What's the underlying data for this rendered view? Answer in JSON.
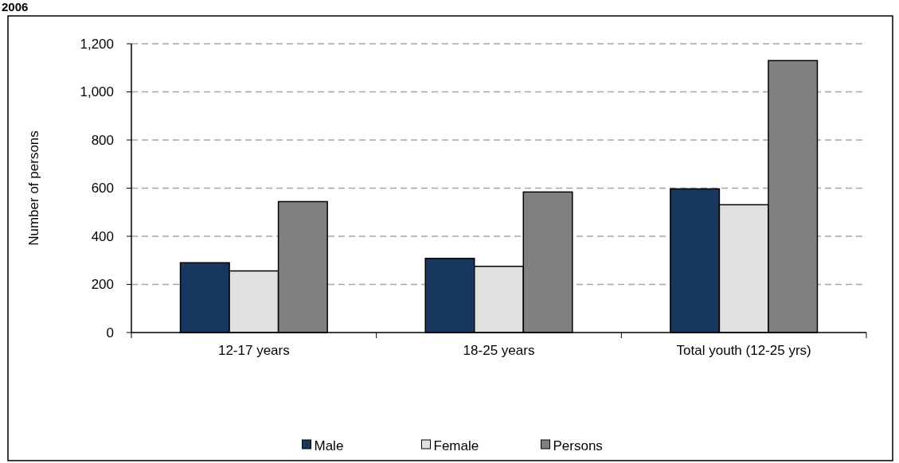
{
  "chart_data": {
    "type": "bar",
    "title": "2006",
    "ylabel": "Number of persons",
    "categories": [
      "12-17 years",
      "18-25 years",
      "Total youth (12-25 yrs)"
    ],
    "series": [
      {
        "name": "Male",
        "color": "#17375e",
        "values": [
          290,
          308,
          597
        ]
      },
      {
        "name": "Female",
        "color": "#e0e0e0",
        "values": [
          256,
          275,
          531
        ]
      },
      {
        "name": "Persons",
        "color": "#808080",
        "values": [
          544,
          584,
          1130
        ]
      }
    ],
    "ylim": [
      0,
      1200
    ],
    "yticks": [
      0,
      {
        "value": 200,
        "label": "200"
      },
      {
        "value": 400,
        "label": "400"
      },
      {
        "value": 600,
        "label": "600"
      },
      {
        "value": 800,
        "label": "800"
      },
      {
        "value": 1000,
        "label": "1,000"
      },
      {
        "value": 1200,
        "label": "1,200"
      }
    ],
    "grid": "y",
    "legend": "bottom"
  }
}
